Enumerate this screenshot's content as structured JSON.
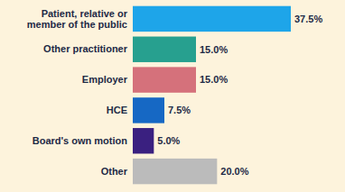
{
  "chart_data": {
    "type": "bar",
    "orientation": "horizontal",
    "categories": [
      "Patient, relative or member of the public",
      "Other practitioner",
      "Employer",
      "HCE",
      "Board's own motion",
      "Other"
    ],
    "values": [
      37.5,
      15.0,
      15.0,
      7.5,
      5.0,
      20.0
    ],
    "value_labels": [
      "37.5%",
      "15.0%",
      "15.0%",
      "7.5%",
      "5.0%",
      "20.0%"
    ],
    "colors": [
      "#1ea5e9",
      "#27a08f",
      "#d5717b",
      "#1668c4",
      "#3a2080",
      "#bbbbbb"
    ],
    "data_labels": true,
    "tick_labels": "y",
    "grid": false
  }
}
